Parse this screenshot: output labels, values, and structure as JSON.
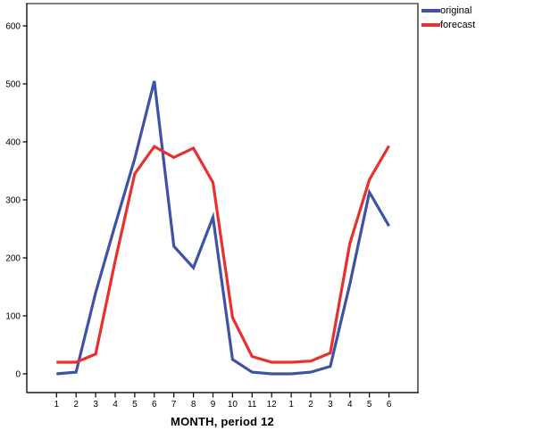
{
  "chart_data": {
    "type": "line",
    "title": "",
    "xlabel": "MONTH, period 12",
    "ylabel": "",
    "x_tick_labels": [
      "1",
      "2",
      "3",
      "4",
      "5",
      "6",
      "7",
      "8",
      "9",
      "10",
      "11",
      "12",
      "1",
      "2",
      "3",
      "4",
      "5",
      "6"
    ],
    "y_ticks": [
      0,
      100,
      200,
      300,
      400,
      500,
      600
    ],
    "ylim": [
      0,
      638
    ],
    "xlim_note": "18 monthly points, two overlapping yearly periods",
    "grid": false,
    "legend_position": "top-right-outside",
    "series": [
      {
        "name": "original",
        "color": "#3E53A4",
        "values": [
          0,
          3,
          140,
          257,
          371,
          505,
          220,
          183,
          270,
          25,
          3,
          0,
          0,
          3,
          13,
          155,
          313,
          255
        ]
      },
      {
        "name": "forecast",
        "color": "#E8312E",
        "values": [
          20,
          20,
          34,
          195,
          345,
          392,
          373,
          389,
          330,
          97,
          30,
          20,
          20,
          22,
          36,
          225,
          335,
          393
        ]
      }
    ],
    "frame_colors": {
      "top": "#808080",
      "right": "#6E6E6E",
      "left": "#000000",
      "bottom": "#1A1A1A"
    },
    "axis_text_color": "#000000"
  }
}
